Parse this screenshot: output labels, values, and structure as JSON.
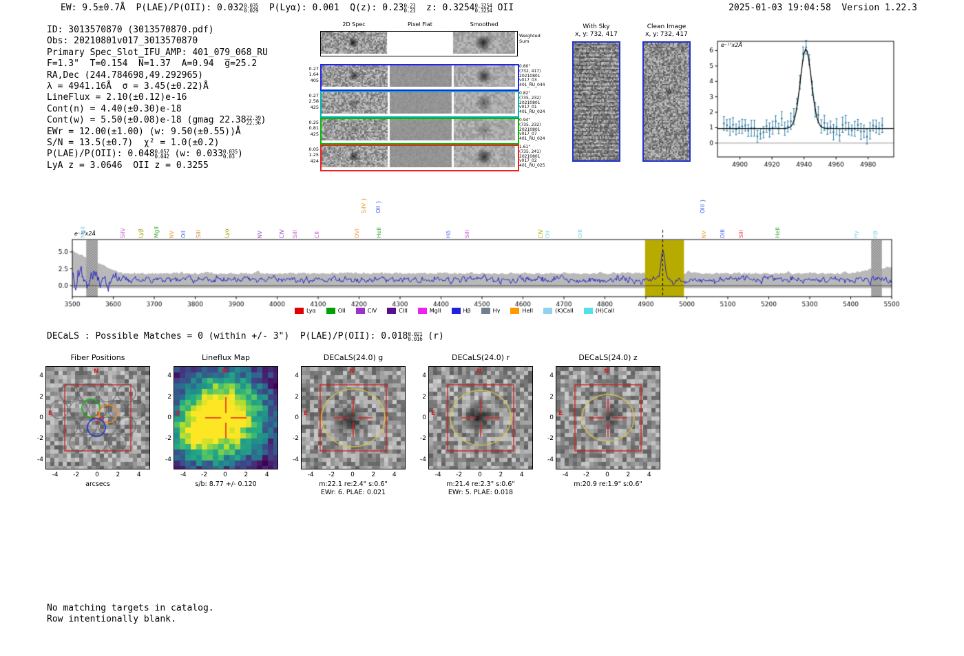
{
  "header": {
    "left_segments": [
      {
        "text": "EW: 9.5±0.7Å  P(LAE)/P(OII): 0.032"
      },
      {
        "stack": [
          "0.035",
          "0.029"
        ]
      },
      {
        "text": "  P(Lyα): 0.001  Q(z): 0.23"
      },
      {
        "stack": [
          "0.23",
          "0.23"
        ]
      },
      {
        "text": "  z: 0.3254"
      },
      {
        "stack": [
          "0.3254",
          "0.3254"
        ]
      },
      {
        "text": " OII"
      }
    ],
    "right": "2025-01-03 19:04:58  Version 1.22.3"
  },
  "info_lines": [
    [
      {
        "text": "ID: 3013570870 (3013570870.pdf)"
      }
    ],
    [
      {
        "text": "Obs: 20210801v017_3013570870"
      }
    ],
    [
      {
        "text": "Primary Spec_Slot_IFU_AMP: 401_079_068_RU"
      }
    ],
    [
      {
        "text": "F=1.3\"  T=0.154  N̅=1.37  A=0.94  g̅=25.2"
      }
    ],
    [
      {
        "text": "RA,Dec (244.784698,49.292965)"
      }
    ],
    [
      {
        "text": "λ = 4941.16Å  σ = 3.45(±0.22)Å"
      }
    ],
    [
      {
        "text": "LineFlux = 2.10(±0.12)e-16"
      }
    ],
    [
      {
        "text": "Cont(n) = 4.40(±0.30)e-18"
      }
    ],
    [
      {
        "text": "Cont(w) = 5.50(±0.08)e-18 (gmag 22.38"
      },
      {
        "stack": [
          "22.39",
          "22.36"
        ]
      },
      {
        "text": ")"
      }
    ],
    [
      {
        "text": "EWr = 12.00(±1.00) (w: 9.50(±0.55))Å"
      }
    ],
    [
      {
        "text": "S/N = 13.5(±0.7)  χ² = 1.0(±0.2)"
      }
    ],
    [
      {
        "text": "P(LAE)/P(OII): 0.048"
      },
      {
        "stack": [
          "0.057",
          "0.042"
        ]
      },
      {
        "text": " (w: 0.033"
      },
      {
        "stack": [
          "0.035",
          "0.03"
        ]
      },
      {
        "text": ")"
      }
    ],
    [
      {
        "text": "LyA z = 3.0646  OII z = 0.3255"
      }
    ]
  ],
  "spec2d": {
    "col_headers": [
      "2D Spec",
      "Pixel Flat",
      "Smoothed"
    ],
    "weighted_label": [
      "Weighted",
      "Sum"
    ],
    "rows": [
      {
        "color": "#2222ee",
        "left": [
          "0.27",
          "1.64",
          "405"
        ],
        "right": [
          "0.80\"",
          "(732, 417)",
          "20210801",
          "v017_03",
          "401_RU_044"
        ]
      },
      {
        "color": "#00b4b4",
        "left": [
          "0.27",
          "2.58",
          "425"
        ],
        "right": [
          "0.82\"",
          "(735, 232)",
          "20210801",
          "v017_01",
          "401_RU_024"
        ]
      },
      {
        "color": "#00bb00",
        "left": [
          "0.25",
          "0.81",
          "425"
        ],
        "right": [
          "0.94\"",
          "(735, 232)",
          "20210801",
          "v017_07",
          "401_RU_024"
        ]
      },
      {
        "color": "#ee2222",
        "left": [
          "0.05",
          "1.25",
          "424"
        ],
        "right": [
          "1.61\"",
          "(735, 241)",
          "20210801",
          "v017_02",
          "401_RU_025"
        ]
      }
    ]
  },
  "with_sky": {
    "title": "With Sky",
    "coords": "x, y: 732, 417"
  },
  "clean_image": {
    "title": "Clean Image",
    "coords": "x, y: 732, 417"
  },
  "chart_data": [
    {
      "id": "emission_line_fit",
      "type": "line",
      "annotation": "e⁻¹⁷x2Å",
      "x_ticks": [
        4900,
        4920,
        4940,
        4960,
        4980
      ],
      "y_ticks": [
        0,
        1,
        2,
        3,
        4,
        5,
        6
      ],
      "xlim": [
        4886,
        4996
      ],
      "ylim": [
        -0.9,
        6.6
      ],
      "fit": {
        "mu": 4941.16,
        "sigma": 3.45,
        "amplitude": 5.15,
        "baseline": 0.95
      },
      "data_color": "#2e7ca3",
      "fit_color": "#000000"
    },
    {
      "id": "full_spectrum",
      "type": "line",
      "annotation": "e⁻¹⁷x2Å",
      "x_ticks": [
        3500,
        3600,
        3700,
        3800,
        3900,
        4000,
        4100,
        4200,
        4300,
        4400,
        4500,
        4600,
        4700,
        4800,
        4900,
        5000,
        5100,
        5200,
        5300,
        5400,
        5500
      ],
      "y_ticks": [
        "0.0",
        "2.5",
        "5.0"
      ],
      "xlim": [
        3500,
        5500
      ],
      "baseline": 0.95,
      "emission": {
        "mu": 4941.16,
        "sigma": 4.3,
        "amplitude": 4.25
      },
      "highlight": {
        "x0": 4898,
        "x1": 4993,
        "color": "#b8ab00"
      },
      "dashed_line_x": 4941.16,
      "hatch_bands": [
        [
          3534,
          3562
        ],
        [
          5450,
          5476
        ]
      ],
      "line_color": "#1414cc",
      "band_color": "#b9b9b9",
      "line_labels": [
        {
          "wave": 3527,
          "label": "MgII",
          "color": "#7fd0e8",
          "row": 1
        },
        {
          "wave": 3625,
          "label": "SiIV",
          "color": "#cc55cc",
          "row": 1
        },
        {
          "wave": 3668,
          "label": "Lyβ",
          "color": "#a0a000",
          "row": 1
        },
        {
          "wave": 3706,
          "label": "MgII",
          "color": "#33aa33",
          "row": 1
        },
        {
          "wave": 3743,
          "label": "NV",
          "color": "#ee9933",
          "row": 1
        },
        {
          "wave": 3772,
          "label": "OII",
          "color": "#4466ee",
          "row": 1
        },
        {
          "wave": 3810,
          "label": "SiII",
          "color": "#cc8833",
          "row": 1
        },
        {
          "wave": 3878,
          "label": "Lyα",
          "color": "#a0a000",
          "row": 1
        },
        {
          "wave": 3958,
          "label": "NV",
          "color": "#9944cc",
          "row": 1
        },
        {
          "wave": 4012,
          "label": "CIV",
          "color": "#9944cc",
          "row": 1
        },
        {
          "wave": 4045,
          "label": "SiII",
          "color": "#cc55cc",
          "row": 1
        },
        {
          "wave": 4098,
          "label": "CII",
          "color": "#cc55cc",
          "row": 1
        },
        {
          "wave": 4195,
          "label": "OVI",
          "color": "#ee9933",
          "row": 1
        },
        {
          "wave": 4213,
          "label": "SiIV }",
          "color": "#ee9933",
          "row": 0
        },
        {
          "wave": 4248,
          "label": "OII }",
          "color": "#4466ee",
          "row": 0
        },
        {
          "wave": 4250,
          "label": "HeII",
          "color": "#33aa33",
          "row": 1
        },
        {
          "wave": 4420,
          "label": "Hδ",
          "color": "#4466ee",
          "row": 1
        },
        {
          "wave": 4465,
          "label": "SiII",
          "color": "#cc55cc",
          "row": 1
        },
        {
          "wave": 4645,
          "label": "CIV",
          "color": "#b0b000",
          "row": 1
        },
        {
          "wave": 4662,
          "label": "OII",
          "color": "#7fd0e8",
          "row": 1
        },
        {
          "wave": 4740,
          "label": "OIII",
          "color": "#7fd0e8",
          "row": 1
        },
        {
          "wave": 5040,
          "label": "OIII }",
          "color": "#4466ee",
          "row": 0
        },
        {
          "wave": 5043,
          "label": "NV",
          "color": "#ee9933",
          "row": 1
        },
        {
          "wave": 5088,
          "label": "OIII",
          "color": "#4466ee",
          "row": 1
        },
        {
          "wave": 5133,
          "label": "SiII",
          "color": "#ee4444",
          "row": 1
        },
        {
          "wave": 5223,
          "label": "HeII",
          "color": "#33aa33",
          "row": 1
        },
        {
          "wave": 5415,
          "label": "Hγ",
          "color": "#7fd0e8",
          "row": 1
        },
        {
          "wave": 5462,
          "label": "Hβ",
          "color": "#7fd0e8",
          "row": 1
        }
      ],
      "legend": [
        {
          "label": "Lyα",
          "color": "#e00000"
        },
        {
          "label": "OII",
          "color": "#00a000"
        },
        {
          "label": "CIV",
          "color": "#9933cc"
        },
        {
          "label": "CIII",
          "color": "#5a0f8a"
        },
        {
          "label": "MgII",
          "color": "#ee22ee"
        },
        {
          "label": "Hβ",
          "color": "#2222dd"
        },
        {
          "label": "Hγ",
          "color": "#708090"
        },
        {
          "label": "HeII",
          "color": "#ff9900"
        },
        {
          "label": "(K)CaII",
          "color": "#8fd2ee"
        },
        {
          "label": "(H)CaII",
          "color": "#55e0e8"
        }
      ]
    },
    {
      "id": "cutouts",
      "type": "heatmap",
      "x_ticks": [
        -4,
        -2,
        0,
        2,
        4
      ],
      "y_ticks": [
        4,
        2,
        0,
        -2,
        -4
      ],
      "compass": {
        "n": "N",
        "e": "E"
      },
      "panels": [
        {
          "title": "Fiber Positions",
          "xlabel": "arcsecs",
          "captions": [],
          "style": "fiber"
        },
        {
          "title": "Lineflux Map",
          "captions": [
            "s/b: 8.77 +/- 0.120"
          ],
          "style": "viridis"
        },
        {
          "title": "DECaLS(24.0) g",
          "captions": [
            "m:22.1 re:2.4\" s:0.6\"",
            "EWr: 6. PLAE: 0.021"
          ],
          "style": "gray"
        },
        {
          "title": "DECaLS(24.0) r",
          "captions": [
            "m:21.4 re:2.3\" s:0.6\"",
            "EWr: 5. PLAE: 0.018"
          ],
          "style": "gray"
        },
        {
          "title": "DECaLS(24.0) z",
          "captions": [
            "m:20.9 re:1.9\" s:0.6\""
          ],
          "style": "gray"
        }
      ]
    }
  ],
  "decals_line_segments": [
    {
      "text": "DECaLS : Possible Matches = 0 (within +/- 3\")  P(LAE)/P(OII): 0.018"
    },
    {
      "stack": [
        "0.021",
        "0.016"
      ]
    },
    {
      "text": " (r)"
    }
  ],
  "footer_lines": [
    "No matching targets in catalog.",
    "Row intentionally blank."
  ]
}
